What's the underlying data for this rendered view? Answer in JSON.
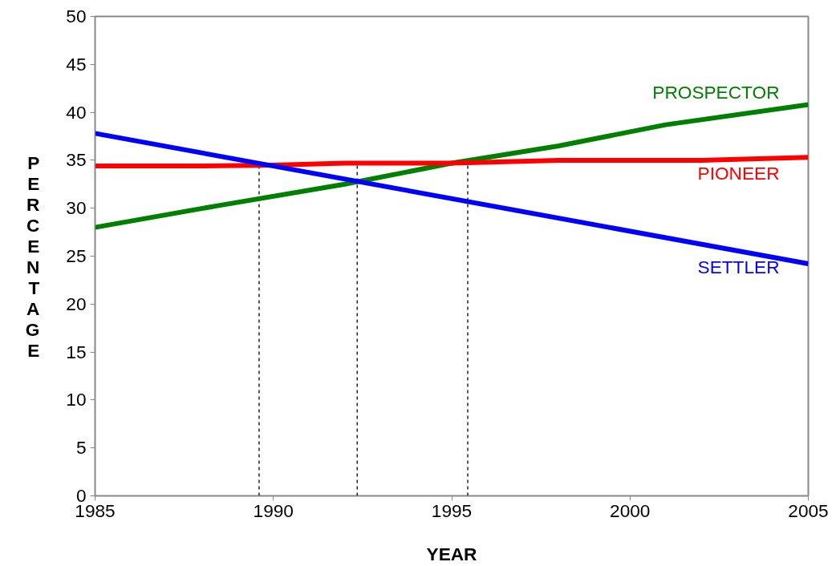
{
  "chart_data": {
    "type": "line",
    "xlabel": "YEAR",
    "ylabel": "PERCENTAGE",
    "xlim": [
      1985,
      2005
    ],
    "xticks": [
      1985,
      1990,
      1995,
      2000,
      2005
    ],
    "ylim": [
      0,
      50
    ],
    "yticks": [
      0,
      5,
      10,
      15,
      20,
      25,
      30,
      35,
      40,
      45,
      50
    ],
    "grid": false,
    "legend": false,
    "marker": "none",
    "line_style": "solid",
    "series": [
      {
        "name": "PROSPECTOR",
        "color": "#008000",
        "x": [
          1985,
          1988.5,
          1992,
          1995,
          1998,
          2001,
          2005
        ],
        "values": [
          28.0,
          30.3,
          32.5,
          34.7,
          36.5,
          38.7,
          40.8
        ]
      },
      {
        "name": "PIONEER",
        "color": "#ff0000",
        "x": [
          1985,
          1988,
          1990,
          1992,
          1995,
          1998,
          2002,
          2005
        ],
        "values": [
          34.4,
          34.4,
          34.5,
          34.7,
          34.7,
          35.0,
          35.0,
          35.3
        ]
      },
      {
        "name": "SETTLER",
        "color": "#0000ff",
        "x": [
          1985,
          2005
        ],
        "values": [
          37.8,
          24.2
        ]
      }
    ],
    "ref_lines": [
      {
        "axis": "x",
        "value": 1989.6,
        "color": "#000000",
        "line_style": "dashed"
      },
      {
        "axis": "x",
        "value": 1992.35,
        "color": "#000000",
        "line_style": "dashed"
      },
      {
        "axis": "x",
        "value": 1995.45,
        "color": "#000000",
        "line_style": "dashed"
      }
    ]
  }
}
